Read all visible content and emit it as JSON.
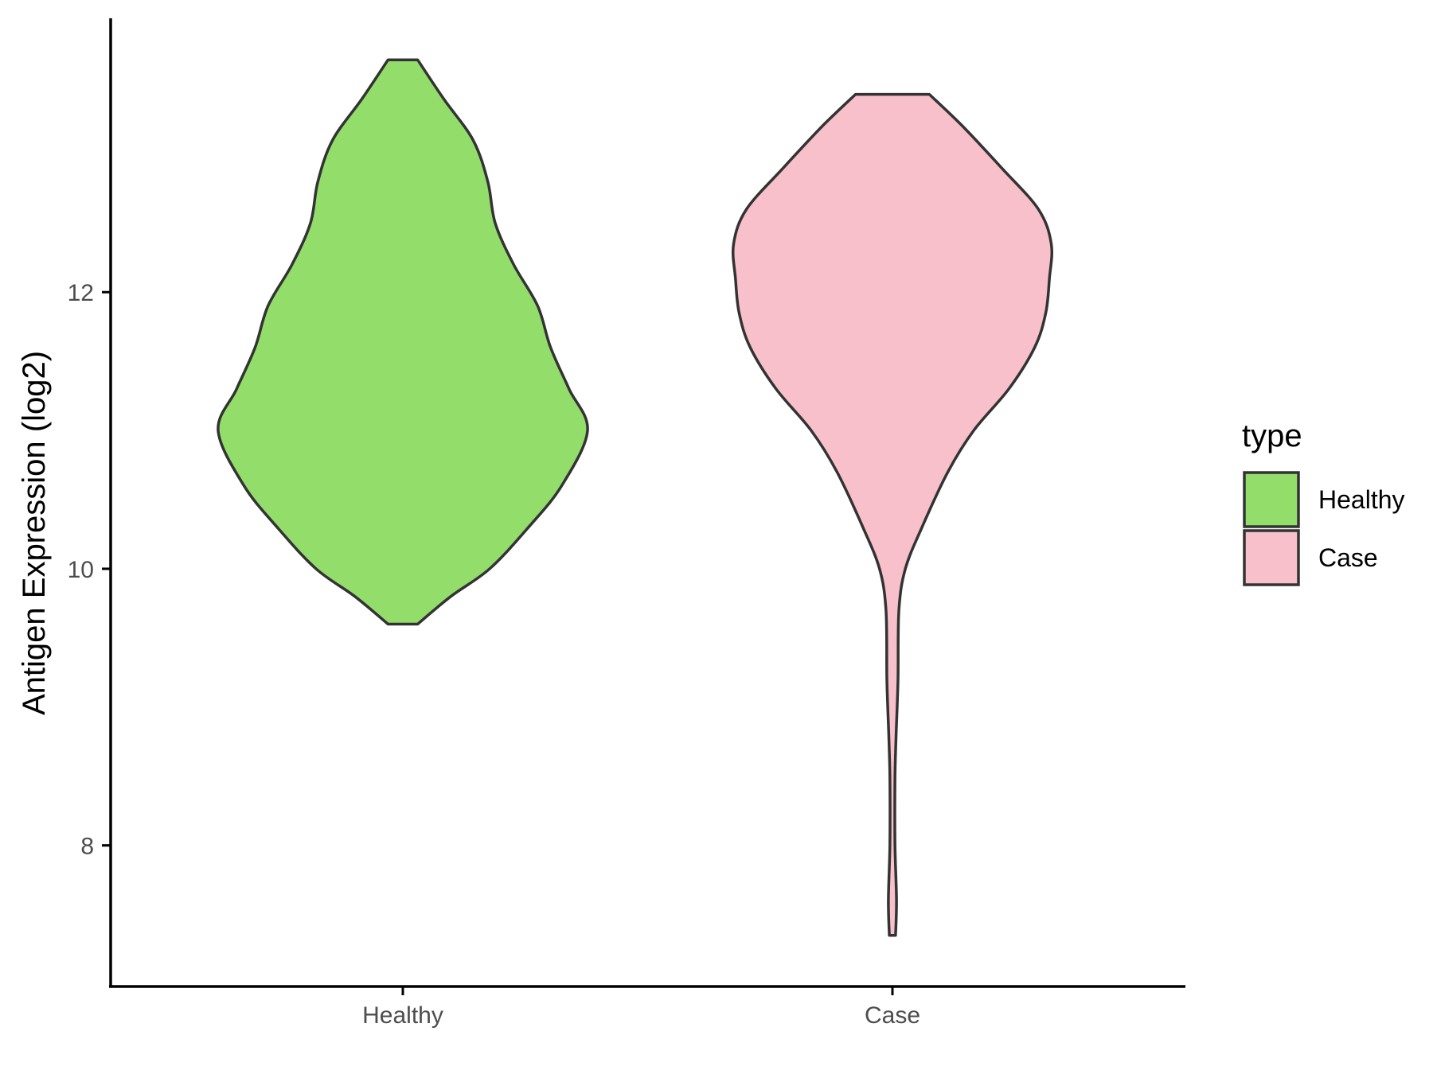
{
  "chart_data": {
    "type": "violin",
    "xlabel": "",
    "ylabel": "Antigen Expression (log2)",
    "ylim": [
      6.98,
      13.98
    ],
    "yticks": [
      "8",
      "10",
      "12"
    ],
    "categories": [
      "Healthy",
      "Case"
    ],
    "legend": {
      "title": "type",
      "position": "right",
      "entries": [
        "Healthy",
        "Case"
      ]
    },
    "grid": false,
    "series": [
      {
        "name": "Healthy",
        "color": "#93dd6b",
        "min": 9.6,
        "max": 13.68,
        "profile": [
          [
            9.6,
            0.08
          ],
          [
            9.8,
            0.26
          ],
          [
            10.0,
            0.47
          ],
          [
            10.3,
            0.68
          ],
          [
            10.6,
            0.86
          ],
          [
            11.0,
            1.0
          ],
          [
            11.3,
            0.9
          ],
          [
            11.6,
            0.8
          ],
          [
            11.9,
            0.73
          ],
          [
            12.2,
            0.6
          ],
          [
            12.5,
            0.5
          ],
          [
            12.8,
            0.46
          ],
          [
            13.1,
            0.38
          ],
          [
            13.4,
            0.22
          ],
          [
            13.68,
            0.08
          ]
        ]
      },
      {
        "name": "Case",
        "color": "#f8c0cb",
        "min": 7.35,
        "max": 13.43,
        "profile": [
          [
            7.35,
            0.017
          ],
          [
            7.6,
            0.022
          ],
          [
            8.0,
            0.014
          ],
          [
            8.5,
            0.014
          ],
          [
            8.8,
            0.02
          ],
          [
            9.2,
            0.03
          ],
          [
            9.7,
            0.035
          ],
          [
            10.0,
            0.07
          ],
          [
            10.3,
            0.16
          ],
          [
            10.7,
            0.3
          ],
          [
            11.0,
            0.44
          ],
          [
            11.3,
            0.63
          ],
          [
            11.6,
            0.77
          ],
          [
            11.85,
            0.83
          ],
          [
            12.1,
            0.85
          ],
          [
            12.35,
            0.86
          ],
          [
            12.6,
            0.79
          ],
          [
            12.9,
            0.59
          ],
          [
            13.2,
            0.38
          ],
          [
            13.43,
            0.2
          ]
        ]
      }
    ]
  }
}
